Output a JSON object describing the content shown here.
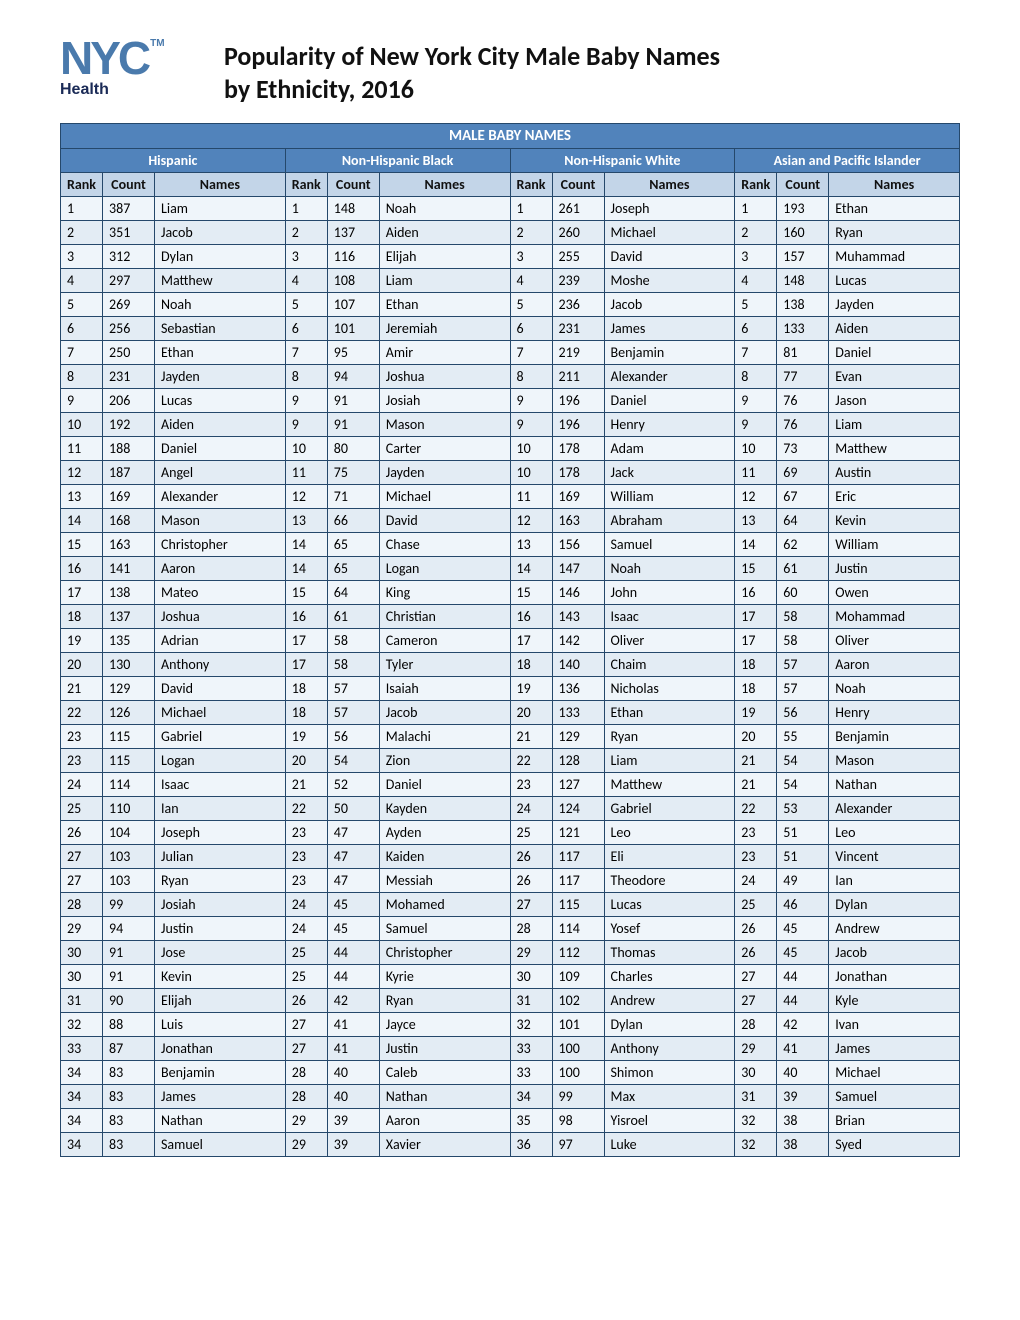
{
  "logo": {
    "brand": "NYC",
    "tm": "TM",
    "sub": "Health"
  },
  "title_line1": "Popularity of New York City Male Baby Names",
  "title_line2": "by Ethnicity, 2016",
  "table": {
    "super_header": "MALE BABY NAMES",
    "groups": [
      "Hispanic",
      "Non-Hispanic Black",
      "Non-Hispanic White",
      "Asian and Pacific Islander"
    ],
    "col_labels": {
      "rank": "Rank",
      "count": "Count",
      "names": "Names"
    },
    "colors": {
      "header_bg": "#5183bb",
      "header_fg": "#ffffff",
      "colhead_bg": "#c3d5e8",
      "row_alt1": "#eff5fa",
      "row_alt2": "#e3ecf4",
      "border": "#25486b"
    },
    "rows": [
      [
        [
          1,
          387,
          "Liam"
        ],
        [
          1,
          148,
          "Noah"
        ],
        [
          1,
          261,
          "Joseph"
        ],
        [
          1,
          193,
          "Ethan"
        ]
      ],
      [
        [
          2,
          351,
          "Jacob"
        ],
        [
          2,
          137,
          "Aiden"
        ],
        [
          2,
          260,
          "Michael"
        ],
        [
          2,
          160,
          "Ryan"
        ]
      ],
      [
        [
          3,
          312,
          "Dylan"
        ],
        [
          3,
          116,
          "Elijah"
        ],
        [
          3,
          255,
          "David"
        ],
        [
          3,
          157,
          "Muhammad"
        ]
      ],
      [
        [
          4,
          297,
          "Matthew"
        ],
        [
          4,
          108,
          "Liam"
        ],
        [
          4,
          239,
          "Moshe"
        ],
        [
          4,
          148,
          "Lucas"
        ]
      ],
      [
        [
          5,
          269,
          "Noah"
        ],
        [
          5,
          107,
          "Ethan"
        ],
        [
          5,
          236,
          "Jacob"
        ],
        [
          5,
          138,
          "Jayden"
        ]
      ],
      [
        [
          6,
          256,
          "Sebastian"
        ],
        [
          6,
          101,
          "Jeremiah"
        ],
        [
          6,
          231,
          "James"
        ],
        [
          6,
          133,
          "Aiden"
        ]
      ],
      [
        [
          7,
          250,
          "Ethan"
        ],
        [
          7,
          95,
          "Amir"
        ],
        [
          7,
          219,
          "Benjamin"
        ],
        [
          7,
          81,
          "Daniel"
        ]
      ],
      [
        [
          8,
          231,
          "Jayden"
        ],
        [
          8,
          94,
          "Joshua"
        ],
        [
          8,
          211,
          "Alexander"
        ],
        [
          8,
          77,
          "Evan"
        ]
      ],
      [
        [
          9,
          206,
          "Lucas"
        ],
        [
          9,
          91,
          "Josiah"
        ],
        [
          9,
          196,
          "Daniel"
        ],
        [
          9,
          76,
          "Jason"
        ]
      ],
      [
        [
          10,
          192,
          "Aiden"
        ],
        [
          9,
          91,
          "Mason"
        ],
        [
          9,
          196,
          "Henry"
        ],
        [
          9,
          76,
          "Liam"
        ]
      ],
      [
        [
          11,
          188,
          "Daniel"
        ],
        [
          10,
          80,
          "Carter"
        ],
        [
          10,
          178,
          "Adam"
        ],
        [
          10,
          73,
          "Matthew"
        ]
      ],
      [
        [
          12,
          187,
          "Angel"
        ],
        [
          11,
          75,
          "Jayden"
        ],
        [
          10,
          178,
          "Jack"
        ],
        [
          11,
          69,
          "Austin"
        ]
      ],
      [
        [
          13,
          169,
          "Alexander"
        ],
        [
          12,
          71,
          "Michael"
        ],
        [
          11,
          169,
          "William"
        ],
        [
          12,
          67,
          "Eric"
        ]
      ],
      [
        [
          14,
          168,
          "Mason"
        ],
        [
          13,
          66,
          "David"
        ],
        [
          12,
          163,
          "Abraham"
        ],
        [
          13,
          64,
          "Kevin"
        ]
      ],
      [
        [
          15,
          163,
          "Christopher"
        ],
        [
          14,
          65,
          "Chase"
        ],
        [
          13,
          156,
          "Samuel"
        ],
        [
          14,
          62,
          "William"
        ]
      ],
      [
        [
          16,
          141,
          "Aaron"
        ],
        [
          14,
          65,
          "Logan"
        ],
        [
          14,
          147,
          "Noah"
        ],
        [
          15,
          61,
          "Justin"
        ]
      ],
      [
        [
          17,
          138,
          "Mateo"
        ],
        [
          15,
          64,
          "King"
        ],
        [
          15,
          146,
          "John"
        ],
        [
          16,
          60,
          "Owen"
        ]
      ],
      [
        [
          18,
          137,
          "Joshua"
        ],
        [
          16,
          61,
          "Christian"
        ],
        [
          16,
          143,
          "Isaac"
        ],
        [
          17,
          58,
          "Mohammad"
        ]
      ],
      [
        [
          19,
          135,
          "Adrian"
        ],
        [
          17,
          58,
          "Cameron"
        ],
        [
          17,
          142,
          "Oliver"
        ],
        [
          17,
          58,
          "Oliver"
        ]
      ],
      [
        [
          20,
          130,
          "Anthony"
        ],
        [
          17,
          58,
          "Tyler"
        ],
        [
          18,
          140,
          "Chaim"
        ],
        [
          18,
          57,
          "Aaron"
        ]
      ],
      [
        [
          21,
          129,
          "David"
        ],
        [
          18,
          57,
          "Isaiah"
        ],
        [
          19,
          136,
          "Nicholas"
        ],
        [
          18,
          57,
          "Noah"
        ]
      ],
      [
        [
          22,
          126,
          "Michael"
        ],
        [
          18,
          57,
          "Jacob"
        ],
        [
          20,
          133,
          "Ethan"
        ],
        [
          19,
          56,
          "Henry"
        ]
      ],
      [
        [
          23,
          115,
          "Gabriel"
        ],
        [
          19,
          56,
          "Malachi"
        ],
        [
          21,
          129,
          "Ryan"
        ],
        [
          20,
          55,
          "Benjamin"
        ]
      ],
      [
        [
          23,
          115,
          "Logan"
        ],
        [
          20,
          54,
          "Zion"
        ],
        [
          22,
          128,
          "Liam"
        ],
        [
          21,
          54,
          "Mason"
        ]
      ],
      [
        [
          24,
          114,
          "Isaac"
        ],
        [
          21,
          52,
          "Daniel"
        ],
        [
          23,
          127,
          "Matthew"
        ],
        [
          21,
          54,
          "Nathan"
        ]
      ],
      [
        [
          25,
          110,
          "Ian"
        ],
        [
          22,
          50,
          "Kayden"
        ],
        [
          24,
          124,
          "Gabriel"
        ],
        [
          22,
          53,
          "Alexander"
        ]
      ],
      [
        [
          26,
          104,
          "Joseph"
        ],
        [
          23,
          47,
          "Ayden"
        ],
        [
          25,
          121,
          "Leo"
        ],
        [
          23,
          51,
          "Leo"
        ]
      ],
      [
        [
          27,
          103,
          "Julian"
        ],
        [
          23,
          47,
          "Kaiden"
        ],
        [
          26,
          117,
          "Eli"
        ],
        [
          23,
          51,
          "Vincent"
        ]
      ],
      [
        [
          27,
          103,
          "Ryan"
        ],
        [
          23,
          47,
          "Messiah"
        ],
        [
          26,
          117,
          "Theodore"
        ],
        [
          24,
          49,
          "Ian"
        ]
      ],
      [
        [
          28,
          99,
          "Josiah"
        ],
        [
          24,
          45,
          "Mohamed"
        ],
        [
          27,
          115,
          "Lucas"
        ],
        [
          25,
          46,
          "Dylan"
        ]
      ],
      [
        [
          29,
          94,
          "Justin"
        ],
        [
          24,
          45,
          "Samuel"
        ],
        [
          28,
          114,
          "Yosef"
        ],
        [
          26,
          45,
          "Andrew"
        ]
      ],
      [
        [
          30,
          91,
          "Jose"
        ],
        [
          25,
          44,
          "Christopher"
        ],
        [
          29,
          112,
          "Thomas"
        ],
        [
          26,
          45,
          "Jacob"
        ]
      ],
      [
        [
          30,
          91,
          "Kevin"
        ],
        [
          25,
          44,
          "Kyrie"
        ],
        [
          30,
          109,
          "Charles"
        ],
        [
          27,
          44,
          "Jonathan"
        ]
      ],
      [
        [
          31,
          90,
          "Elijah"
        ],
        [
          26,
          42,
          "Ryan"
        ],
        [
          31,
          102,
          "Andrew"
        ],
        [
          27,
          44,
          "Kyle"
        ]
      ],
      [
        [
          32,
          88,
          "Luis"
        ],
        [
          27,
          41,
          "Jayce"
        ],
        [
          32,
          101,
          "Dylan"
        ],
        [
          28,
          42,
          "Ivan"
        ]
      ],
      [
        [
          33,
          87,
          "Jonathan"
        ],
        [
          27,
          41,
          "Justin"
        ],
        [
          33,
          100,
          "Anthony"
        ],
        [
          29,
          41,
          "James"
        ]
      ],
      [
        [
          34,
          83,
          "Benjamin"
        ],
        [
          28,
          40,
          "Caleb"
        ],
        [
          33,
          100,
          "Shimon"
        ],
        [
          30,
          40,
          "Michael"
        ]
      ],
      [
        [
          34,
          83,
          "James"
        ],
        [
          28,
          40,
          "Nathan"
        ],
        [
          34,
          99,
          "Max"
        ],
        [
          31,
          39,
          "Samuel"
        ]
      ],
      [
        [
          34,
          83,
          "Nathan"
        ],
        [
          29,
          39,
          "Aaron"
        ],
        [
          35,
          98,
          "Yisroel"
        ],
        [
          32,
          38,
          "Brian"
        ]
      ],
      [
        [
          34,
          83,
          "Samuel"
        ],
        [
          29,
          39,
          "Xavier"
        ],
        [
          36,
          97,
          "Luke"
        ],
        [
          32,
          38,
          "Syed"
        ]
      ]
    ]
  }
}
